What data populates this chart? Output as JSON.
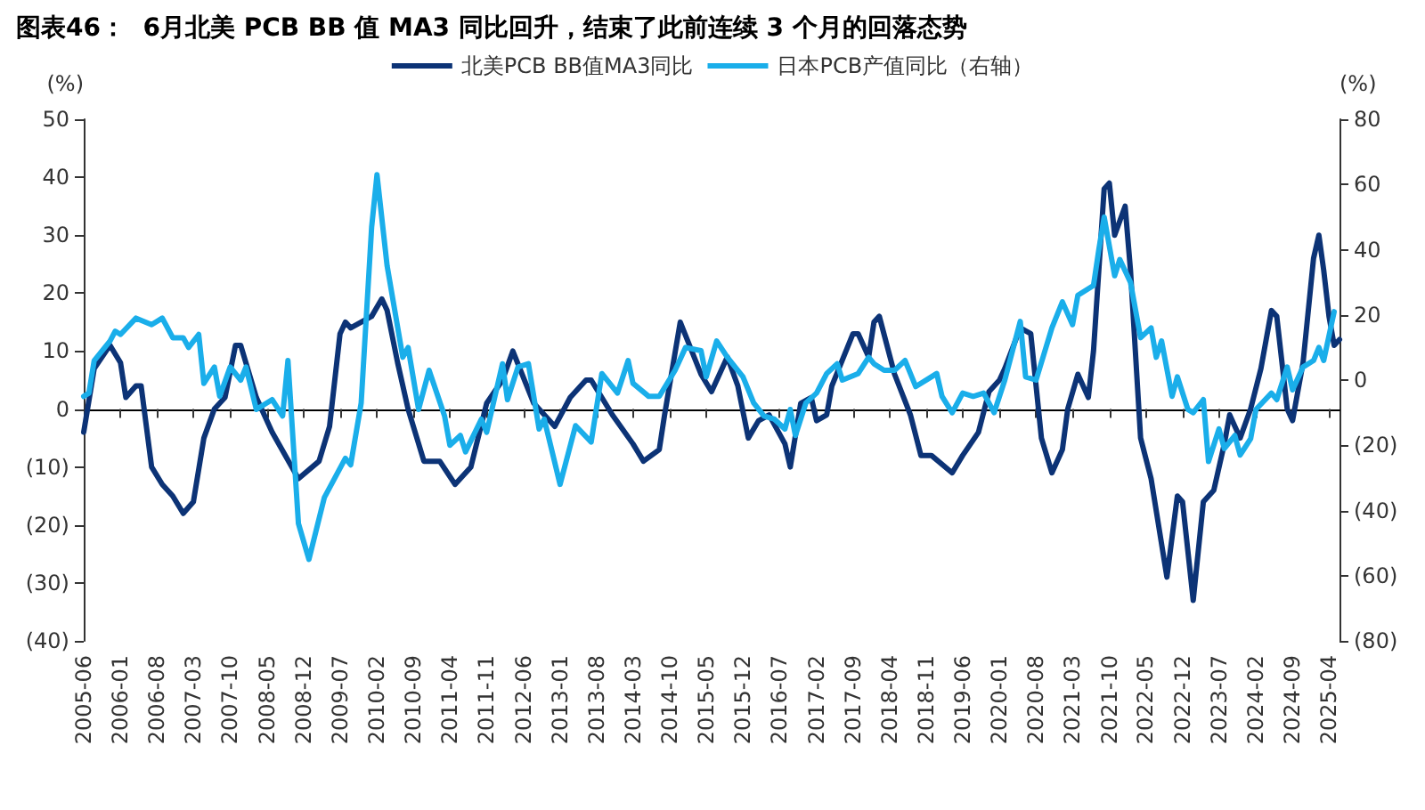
{
  "chart_data": {
    "type": "line",
    "title": "图表46：  6月北美 PCB BB 值 MA3 同比回升，结束了此前连续 3 个月的回落态势",
    "ylabel": "(%)",
    "y2label": "(%)",
    "xlim": [
      "2005-06",
      "2025-06"
    ],
    "xticks": [
      "2005-06",
      "2006-01",
      "2006-08",
      "2007-03",
      "2007-10",
      "2008-05",
      "2008-12",
      "2009-07",
      "2010-02",
      "2010-09",
      "2011-04",
      "2011-11",
      "2012-06",
      "2013-01",
      "2013-08",
      "2014-03",
      "2014-10",
      "2015-05",
      "2015-12",
      "2016-07",
      "2017-02",
      "2017-09",
      "2018-04",
      "2018-11",
      "2019-06",
      "2020-01",
      "2020-08",
      "2021-03",
      "2021-10",
      "2022-05",
      "2022-12",
      "2023-07",
      "2024-02",
      "2024-09",
      "2025-04"
    ],
    "ylim": [
      -40,
      50
    ],
    "yticks": [
      {
        "value": -40,
        "label": "(40)"
      },
      {
        "value": -30,
        "label": "(30)"
      },
      {
        "value": -20,
        "label": "(20)"
      },
      {
        "value": -10,
        "label": "(10)"
      },
      0,
      10,
      20,
      30,
      40,
      50
    ],
    "y2lim": [
      -80,
      80
    ],
    "y2ticks": [
      {
        "value": -80,
        "label": "(80)"
      },
      {
        "value": -60,
        "label": "(60)"
      },
      {
        "value": -40,
        "label": "(40)"
      },
      {
        "value": -20,
        "label": "(20)"
      },
      0,
      20,
      40,
      60,
      80
    ],
    "legend": "top",
    "marker": "none",
    "line_style": "solid",
    "series": [
      {
        "name": "北美PCB BB值MA3同比",
        "color": "#0c3376",
        "x": [
          "2005-06",
          "2005-08",
          "2005-11",
          "2006-01",
          "2006-02",
          "2006-04",
          "2006-05",
          "2006-07",
          "2006-09",
          "2006-11",
          "2007-01",
          "2007-03",
          "2007-05",
          "2007-07",
          "2007-09",
          "2007-11",
          "2007-12",
          "2008-03",
          "2008-06",
          "2008-11",
          "2009-03",
          "2009-05",
          "2009-07",
          "2009-08",
          "2009-09",
          "2010-01",
          "2010-03",
          "2010-04",
          "2010-06",
          "2010-08",
          "2010-11",
          "2011-02",
          "2011-05",
          "2011-08",
          "2011-11",
          "2012-02",
          "2012-04",
          "2012-08",
          "2012-12",
          "2013-03",
          "2013-06",
          "2013-07",
          "2013-11",
          "2014-03",
          "2014-05",
          "2014-08",
          "2014-09",
          "2014-12",
          "2015-04",
          "2015-06",
          "2015-09",
          "2015-11",
          "2016-01",
          "2016-03",
          "2016-05",
          "2016-08",
          "2016-09",
          "2016-11",
          "2017-01",
          "2017-02",
          "2017-04",
          "2017-05",
          "2017-09",
          "2017-10",
          "2017-12",
          "2018-01",
          "2018-02",
          "2018-05",
          "2018-08",
          "2018-10",
          "2018-12",
          "2019-04",
          "2019-06",
          "2019-09",
          "2019-11",
          "2020-01",
          "2020-02",
          "2020-05",
          "2020-07",
          "2020-09",
          "2020-11",
          "2021-01",
          "2021-02",
          "2021-04",
          "2021-06",
          "2021-07",
          "2021-09",
          "2021-10",
          "2021-11",
          "2022-01",
          "2022-02",
          "2022-04",
          "2022-06",
          "2022-09",
          "2022-11",
          "2022-12",
          "2023-02",
          "2023-04",
          "2023-06",
          "2023-08",
          "2023-09",
          "2023-11",
          "2024-01",
          "2024-03",
          "2024-05",
          "2024-06",
          "2024-08",
          "2024-09",
          "2024-11",
          "2025-01",
          "2025-02",
          "2025-03",
          "2025-04",
          "2025-05",
          "2025-06"
        ],
        "values": [
          -4,
          7,
          11,
          8,
          2,
          4,
          4,
          -10,
          -13,
          -15,
          -18,
          -16,
          -5,
          0,
          2,
          11,
          11,
          2,
          -4,
          -12,
          -9,
          -3,
          13,
          15,
          14,
          16,
          19,
          17,
          8,
          0,
          -9,
          -9,
          -13,
          -10,
          1,
          5,
          10,
          1,
          -3,
          2,
          5,
          5,
          -1,
          -6,
          -9,
          -7,
          -1,
          15,
          6,
          3,
          9,
          4,
          -5,
          -2,
          -1,
          -6,
          -10,
          1,
          2,
          -2,
          -1,
          4,
          13,
          13,
          9,
          15,
          16,
          6,
          -1,
          -8,
          -8,
          -11,
          -8,
          -4,
          3,
          5,
          7,
          14,
          13,
          -5,
          -11,
          -7,
          0,
          6,
          2,
          10,
          38,
          39,
          30,
          35,
          24,
          -5,
          -12,
          -29,
          -15,
          -16,
          -33,
          -16,
          -14,
          -6,
          -1,
          -5,
          0,
          7,
          17,
          16,
          0,
          -2,
          8,
          26,
          30,
          24,
          16,
          11,
          12
        ]
      },
      {
        "name": "日本PCB产值同比（右轴）",
        "color": "#1aaeea",
        "axis": "y2",
        "x": [
          "2005-06",
          "2005-07",
          "2005-08",
          "2005-11",
          "2005-12",
          "2006-01",
          "2006-04",
          "2006-07",
          "2006-09",
          "2006-11",
          "2007-01",
          "2007-02",
          "2007-04",
          "2007-05",
          "2007-07",
          "2007-08",
          "2007-10",
          "2007-12",
          "2008-01",
          "2008-03",
          "2008-06",
          "2008-08",
          "2008-09",
          "2008-11",
          "2009-01",
          "2009-04",
          "2009-08",
          "2009-09",
          "2009-11",
          "2010-01",
          "2010-02",
          "2010-04",
          "2010-07",
          "2010-08",
          "2010-10",
          "2010-12",
          "2011-03",
          "2011-04",
          "2011-06",
          "2011-07",
          "2011-10",
          "2011-11",
          "2012-02",
          "2012-03",
          "2012-05",
          "2012-07",
          "2012-09",
          "2012-10",
          "2013-01",
          "2013-04",
          "2013-07",
          "2013-09",
          "2013-12",
          "2014-02",
          "2014-03",
          "2014-06",
          "2014-08",
          "2014-11",
          "2015-01",
          "2015-04",
          "2015-05",
          "2015-07",
          "2015-09",
          "2015-12",
          "2016-02",
          "2016-04",
          "2016-06",
          "2016-08",
          "2016-09",
          "2016-10",
          "2016-12",
          "2017-02",
          "2017-04",
          "2017-06",
          "2017-07",
          "2017-10",
          "2017-12",
          "2018-01",
          "2018-03",
          "2018-05",
          "2018-07",
          "2018-09",
          "2018-12",
          "2019-01",
          "2019-02",
          "2019-04",
          "2019-06",
          "2019-08",
          "2019-10",
          "2019-12",
          "2020-02",
          "2020-05",
          "2020-06",
          "2020-08",
          "2020-11",
          "2021-01",
          "2021-03",
          "2021-04",
          "2021-07",
          "2021-08",
          "2021-09",
          "2021-11",
          "2021-12",
          "2022-02",
          "2022-04",
          "2022-06",
          "2022-07",
          "2022-08",
          "2022-10",
          "2022-11",
          "2023-01",
          "2023-02",
          "2023-04",
          "2023-05",
          "2023-07",
          "2023-08",
          "2023-10",
          "2023-11",
          "2024-01",
          "2024-02",
          "2024-05",
          "2024-06",
          "2024-08",
          "2024-09",
          "2024-11",
          "2025-01",
          "2025-02",
          "2025-03",
          "2025-05"
        ],
        "values": [
          -5,
          -4,
          6,
          12,
          15,
          14,
          19,
          17,
          19,
          13,
          13,
          10,
          14,
          -1,
          4,
          -5,
          4,
          0,
          4,
          -9,
          -6,
          -11,
          6,
          -44,
          -55,
          -36,
          -24,
          -26,
          -7,
          47,
          63,
          35,
          7,
          10,
          -9,
          3,
          -11,
          -20,
          -17,
          -22,
          -12,
          -16,
          5,
          -6,
          4,
          5,
          -15,
          -12,
          -32,
          -14,
          -19,
          2,
          -4,
          6,
          -1,
          -5,
          -5,
          3,
          10,
          9,
          1,
          12,
          7,
          1,
          -7,
          -11,
          -12,
          -15,
          -9,
          -17,
          -7,
          -4,
          2,
          5,
          0,
          2,
          7,
          5,
          3,
          3,
          6,
          -2,
          1,
          2,
          -5,
          -10,
          -4,
          -5,
          -4,
          -10,
          0,
          18,
          1,
          0,
          16,
          24,
          17,
          26,
          29,
          40,
          50,
          32,
          37,
          30,
          13,
          16,
          7,
          12,
          -5,
          1,
          -9,
          -10,
          -6,
          -25,
          -15,
          -21,
          -17,
          -23,
          -18,
          -9,
          -4,
          -6,
          4,
          -3,
          4,
          6,
          10,
          6,
          21
        ]
      }
    ]
  }
}
